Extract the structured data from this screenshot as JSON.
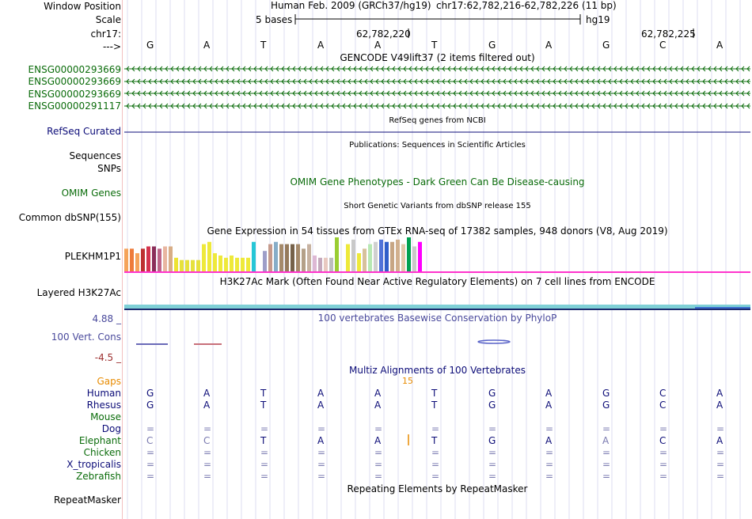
{
  "labels": {
    "window_position": "Window Position",
    "scale": "Scale",
    "chrom": "chr17:",
    "arrow": "--->",
    "gencode": [
      "ENSG00000293669",
      "ENSG00000293669",
      "ENSG00000293669",
      "ENSG00000291117"
    ],
    "refseq": "RefSeq Curated",
    "sequences": "Sequences",
    "snps": "SNPs",
    "omim": "OMIM Genes",
    "dbsnp": "Common dbSNP(155)",
    "gtex_gene": "PLEKHM1P1",
    "h3k27ac": "Layered H3K27Ac",
    "cons_max": "4.88 _",
    "cons": "100 Vert. Cons",
    "cons_min": "-4.5 _",
    "gaps": "Gaps",
    "species": [
      "Human",
      "Rhesus",
      "Mouse",
      "Dog",
      "Elephant",
      "Chicken",
      "X_tropicalis",
      "Zebrafish"
    ],
    "repeatmasker": "RepeatMasker"
  },
  "header": {
    "assembly": "Human Feb. 2009 (GRCh37/hg19)",
    "position": "chr17:62,782,216-62,782,226 (11 bp)",
    "scale_text": "5 bases",
    "scale_db": "hg19",
    "coord1": "62,782,220",
    "coord2": "62,782,225"
  },
  "bases": [
    "G",
    "A",
    "T",
    "A",
    "A",
    "T",
    "G",
    "A",
    "G",
    "C",
    "A"
  ],
  "titles": {
    "gencode": "GENCODE V49lift37 (2 items filtered out)",
    "refseq": "RefSeq genes from NCBI",
    "publications": "Publications: Sequences in Scientific Articles",
    "omim": "OMIM Gene Phenotypes - Dark Green Can Be Disease-causing",
    "dbsnp": "Short Genetic Variants from dbSNP release 155",
    "gtex": "Gene Expression in 54 tissues from GTEx RNA-seq of 17382 samples, 948 donors (V8, Aug 2019)",
    "h3k27ac": "H3K27Ac Mark (Often Found Near Active Regulatory Elements) on 7 cell lines from ENCODE",
    "phylop": "100 vertebrates Basewise Conservation by PhyloP",
    "multiz": "Multiz Alignments of 100 Vertebrates",
    "repeatmasker": "Repeating Elements by RepeatMasker"
  },
  "gap_count": "15",
  "alignment": [
    [
      "G",
      "A",
      "T",
      "A",
      "A",
      "T",
      "G",
      "A",
      "G",
      "C",
      "A"
    ],
    [
      "G",
      "A",
      "T",
      "A",
      "A",
      "T",
      "G",
      "A",
      "G",
      "C",
      "A"
    ],
    [
      "",
      "",
      "",
      "",
      "",
      "",
      "",
      "",
      "",
      "",
      ""
    ],
    [
      "=",
      "=",
      "=",
      "=",
      "=",
      "=",
      "=",
      "=",
      "=",
      "=",
      "="
    ],
    [
      "C",
      "C",
      "T",
      "A",
      "A",
      "T",
      "G",
      "A",
      "A",
      "C",
      "A"
    ],
    [
      "=",
      "=",
      "=",
      "=",
      "=",
      "=",
      "=",
      "=",
      "=",
      "=",
      "="
    ],
    [
      "=",
      "=",
      "=",
      "=",
      "=",
      "=",
      "=",
      "=",
      "=",
      "=",
      "="
    ],
    [
      "=",
      "=",
      "=",
      "=",
      "=",
      "=",
      "=",
      "=",
      "=",
      "=",
      "="
    ]
  ],
  "alignment_faded": [
    [],
    [],
    [],
    [],
    [
      0,
      1,
      8
    ],
    [],
    [],
    []
  ],
  "gtex_expression": [
    10,
    10,
    8,
    10,
    11,
    11,
    10,
    11,
    11,
    6,
    5,
    5,
    5,
    5,
    12,
    13,
    8,
    7,
    6,
    7,
    6,
    6,
    6,
    13,
    0,
    9,
    12,
    13,
    12,
    12,
    12,
    12,
    10,
    12,
    7,
    6,
    6,
    6,
    15,
    0,
    12,
    14,
    8,
    10,
    12,
    13,
    14,
    13,
    13,
    14,
    12,
    15,
    11,
    13
  ],
  "gtex_colors": [
    "#f5a35a",
    "#ee7b3a",
    "#f5a35a",
    "#bd3131",
    "#d4344e",
    "#8b2e5a",
    "#bd6488",
    "#e8b6a0",
    "#d8ad86",
    "#ede333",
    "#e6e13c",
    "#e6e13c",
    "#e6e13c",
    "#e6e13c",
    "#eee93a",
    "#eee93a",
    "#eee93a",
    "#eee93a",
    "#eee93a",
    "#eee93a",
    "#eee93a",
    "#eee93a",
    "#eee93a",
    "#26c6d6",
    "#7bbfd6",
    "#9e9ec8",
    "#c59a8c",
    "#86adc8",
    "#a58a6b",
    "#957a5c",
    "#76624a",
    "#a58a6b",
    "#b4a088",
    "#c7b2a0",
    "#ddb8d4",
    "#c4a8bc",
    "#e8c9c0",
    "#bdbdbd",
    "#9acd32",
    "#bdbdbd",
    "#eee93a",
    "#c9c9c9",
    "#eee93a",
    "#d7c19c",
    "#b7e8b3",
    "#d0d0d0",
    "#4f72d8",
    "#2e5ec9",
    "#c7a684",
    "#d1b08e",
    "#e0c9a8",
    "#00a150",
    "#c9c9c9",
    "#ff00ff"
  ],
  "colors": {
    "gencode": "#0b6c0b",
    "refseq": "#0c0c78",
    "omim": "#0b6c0b",
    "phylop_label": "#4a4a9c",
    "cons_min": "#9c2f2f",
    "gaps": "#e88b00",
    "species_blue": "#0c0c78",
    "species_green": "#0b6c0b",
    "h3k27ac_band": "#7fd0d6"
  }
}
